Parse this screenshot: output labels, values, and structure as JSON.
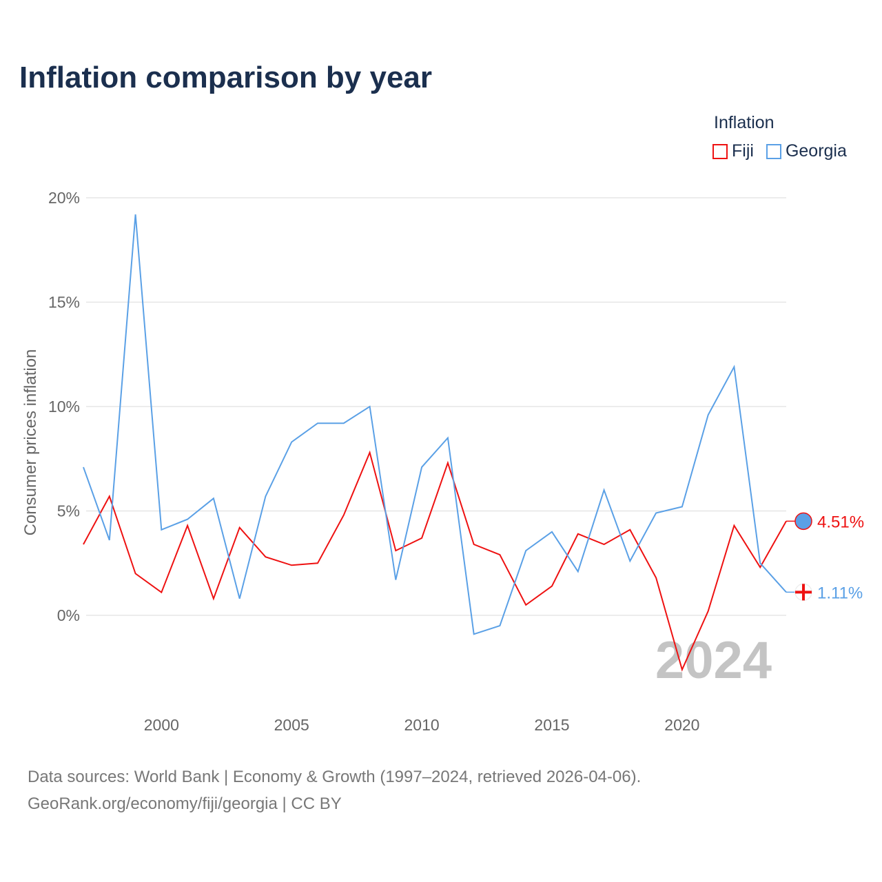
{
  "title": "Inflation comparison by year",
  "legend": {
    "title": "Inflation",
    "items": [
      {
        "name": "Fiji",
        "color": "#ee1111"
      },
      {
        "name": "Georgia",
        "color": "#5aa0e6"
      }
    ]
  },
  "source": {
    "line1": "Data sources: World Bank | Economy & Growth (1997–2024, retrieved 2026-04-06).",
    "line2": "GeoRank.org/economy/fiji/georgia | CC BY"
  },
  "chart_data": {
    "type": "line",
    "title": "Inflation comparison by year",
    "xlabel": "",
    "ylabel": "Consumer prices inflation",
    "x": [
      1997,
      1998,
      1999,
      2000,
      2001,
      2002,
      2003,
      2004,
      2005,
      2006,
      2007,
      2008,
      2009,
      2010,
      2011,
      2012,
      2013,
      2014,
      2015,
      2016,
      2017,
      2018,
      2019,
      2020,
      2021,
      2022,
      2023,
      2024
    ],
    "xlim": [
      1997,
      2024
    ],
    "ylim": [
      -4,
      20
    ],
    "xticks": [
      "2000",
      "2005",
      "2010",
      "2015",
      "2020"
    ],
    "yticks": [
      {
        "v": 0,
        "label": "0%"
      },
      {
        "v": 5,
        "label": "5%"
      },
      {
        "v": 10,
        "label": "10%"
      },
      {
        "v": 15,
        "label": "15%"
      },
      {
        "v": 20,
        "label": "20%"
      }
    ],
    "year_watermark": "2024",
    "series": [
      {
        "name": "Fiji",
        "color": "#ee1111",
        "end_label": "4.51%",
        "values": [
          3.4,
          5.7,
          2.0,
          1.1,
          4.3,
          0.8,
          4.2,
          2.8,
          2.4,
          2.5,
          4.8,
          7.8,
          3.1,
          3.7,
          7.3,
          3.4,
          2.9,
          0.5,
          1.4,
          3.9,
          3.4,
          4.1,
          1.8,
          -2.6,
          0.2,
          4.3,
          2.3,
          4.51
        ]
      },
      {
        "name": "Georgia",
        "color": "#5aa0e6",
        "end_label": "1.11%",
        "values": [
          7.1,
          3.6,
          19.2,
          4.1,
          4.6,
          5.6,
          0.8,
          5.7,
          8.3,
          9.2,
          9.2,
          10.0,
          1.7,
          7.1,
          8.5,
          -0.9,
          -0.5,
          3.1,
          4.0,
          2.1,
          6.0,
          2.6,
          4.9,
          5.2,
          9.6,
          11.9,
          2.5,
          1.11
        ]
      }
    ]
  }
}
